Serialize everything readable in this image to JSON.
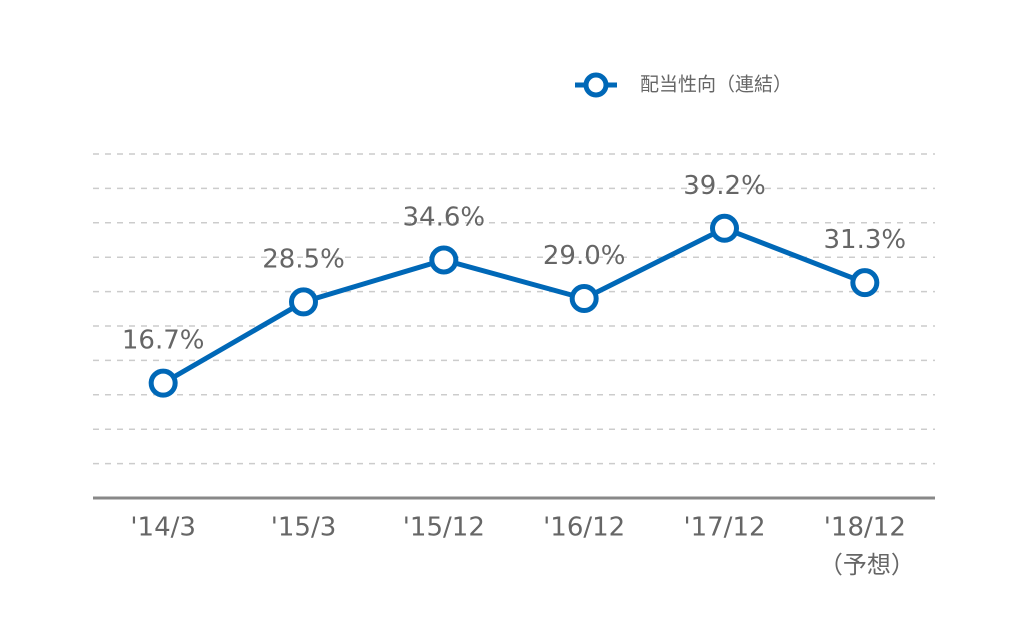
{
  "chart_data": {
    "type": "line",
    "categories": [
      "'14/3",
      "'15/3",
      "'15/12",
      "'16/12",
      "'17/12",
      "'18/12"
    ],
    "x_note": "（予想）",
    "series": [
      {
        "name": "配当性向（連結）",
        "color": "#0068b7",
        "values": [
          16.7,
          28.5,
          34.6,
          29.0,
          39.2,
          31.3
        ],
        "value_labels": [
          "16.7%",
          "28.5%",
          "34.6%",
          "29.0%",
          "39.2%",
          "31.3%"
        ]
      }
    ],
    "ylim": [
      0,
      50
    ],
    "yticks": [
      5,
      10,
      15,
      20,
      25,
      30,
      35,
      40,
      45,
      50
    ],
    "grid": true
  }
}
